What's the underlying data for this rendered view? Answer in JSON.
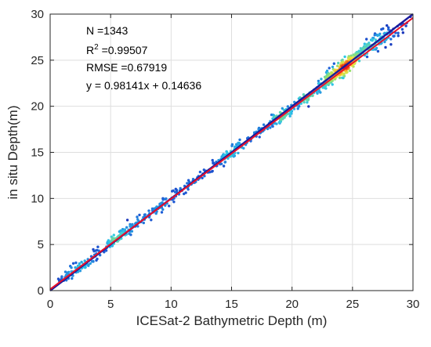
{
  "chart_data": {
    "type": "scatter",
    "title": "",
    "xlabel": "ICESat-2 Bathymetric Depth (m)",
    "ylabel": "in situ Depth(m)",
    "xlim": [
      0,
      30
    ],
    "ylim": [
      0,
      30
    ],
    "xticks": [
      "0",
      "5",
      "10",
      "15",
      "20",
      "25",
      "30"
    ],
    "yticks": [
      "0",
      "5",
      "10",
      "15",
      "20",
      "25",
      "30"
    ],
    "grid": true,
    "density_colored": true,
    "colors": {
      "reference_line": "#1a1a9c",
      "fit_line": "#e8102a",
      "low_density": "#1f2bb5",
      "mid_density": "#30c8e8",
      "high_density": "#f5e23a",
      "peak_density": "#d81e1e"
    },
    "lines": [
      {
        "role": "one-to-one",
        "slope": 1,
        "intercept": 0
      },
      {
        "role": "linear-fit",
        "slope": 0.98141,
        "intercept": 0.14636
      }
    ],
    "stats": {
      "n_text": "N =1343",
      "r2_base": "R",
      "r2_sup": "2",
      "r2_value": " =0.99507",
      "rmse_text": "RMSE =0.67919",
      "equation_text": "y = 0.98141x + 0.14636"
    },
    "clusters": [
      {
        "x": 1.5,
        "y": 1.8,
        "spread": 0.5,
        "count": 25
      },
      {
        "x": 2.5,
        "y": 2.5,
        "spread": 0.6,
        "count": 40
      },
      {
        "x": 3.5,
        "y": 3.6,
        "spread": 0.6,
        "count": 25
      },
      {
        "x": 5.0,
        "y": 5.0,
        "spread": 0.5,
        "count": 30
      },
      {
        "x": 5.8,
        "y": 6.0,
        "spread": 0.6,
        "count": 45
      },
      {
        "x": 6.8,
        "y": 7.0,
        "spread": 0.6,
        "count": 25
      },
      {
        "x": 8.0,
        "y": 8.0,
        "spread": 0.5,
        "count": 20
      },
      {
        "x": 9.5,
        "y": 9.6,
        "spread": 0.6,
        "count": 40
      },
      {
        "x": 11.0,
        "y": 11.0,
        "spread": 0.5,
        "count": 25
      },
      {
        "x": 12.5,
        "y": 12.6,
        "spread": 0.6,
        "count": 30
      },
      {
        "x": 14.5,
        "y": 14.5,
        "spread": 0.6,
        "count": 45
      },
      {
        "x": 15.5,
        "y": 15.5,
        "spread": 0.6,
        "count": 40
      },
      {
        "x": 17.0,
        "y": 17.0,
        "spread": 0.5,
        "count": 25
      },
      {
        "x": 18.7,
        "y": 18.6,
        "spread": 0.6,
        "count": 65
      },
      {
        "x": 19.8,
        "y": 19.6,
        "spread": 0.5,
        "count": 35
      },
      {
        "x": 21.2,
        "y": 20.9,
        "spread": 0.45,
        "count": 50
      },
      {
        "x": 22.5,
        "y": 22.2,
        "spread": 0.7,
        "count": 45
      },
      {
        "x": 23.8,
        "y": 23.8,
        "spread": 0.75,
        "count": 120
      },
      {
        "x": 24.5,
        "y": 24.3,
        "spread": 0.6,
        "count": 70
      },
      {
        "x": 25.5,
        "y": 25.5,
        "spread": 0.7,
        "count": 50
      },
      {
        "x": 26.5,
        "y": 26.8,
        "spread": 0.8,
        "count": 50
      },
      {
        "x": 27.8,
        "y": 27.5,
        "spread": 0.8,
        "count": 40
      },
      {
        "x": 29.0,
        "y": 28.5,
        "spread": 0.5,
        "count": 15
      }
    ]
  }
}
